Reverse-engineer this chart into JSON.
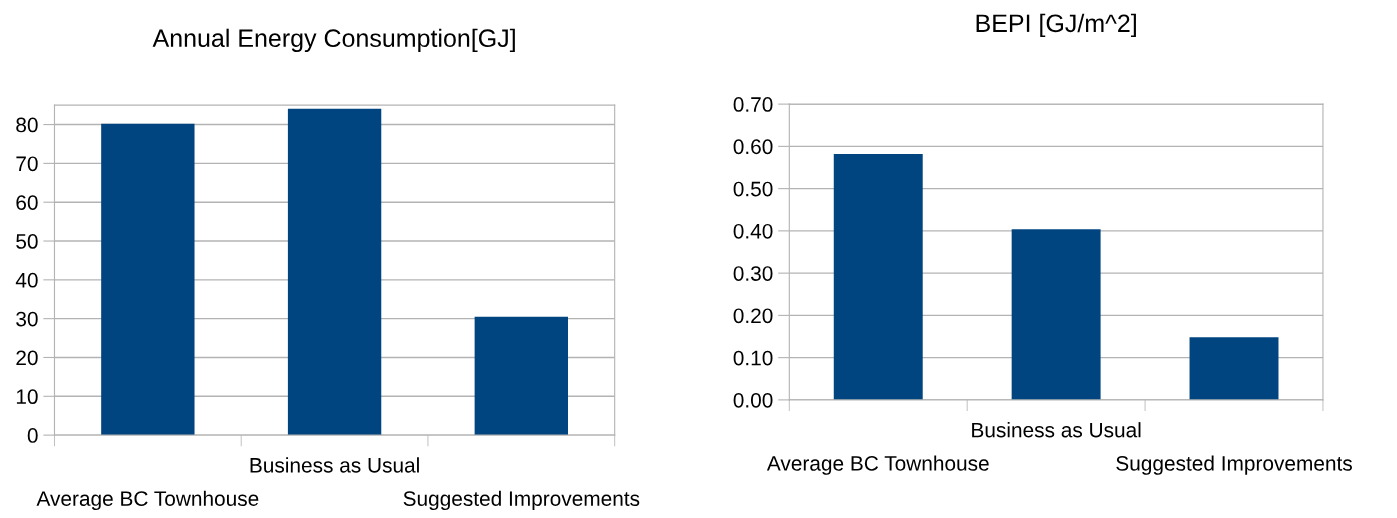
{
  "chart_data": [
    {
      "type": "bar",
      "title": "Annual Energy Consumption[GJ]",
      "categories": [
        "Average BC Townhouse",
        "Business as Usual",
        "Suggested Improvements"
      ],
      "values": [
        80.2,
        84.1,
        30.5
      ],
      "color": "#00457f",
      "ylim": [
        0,
        85
      ],
      "yticks": [
        0,
        10,
        20,
        30,
        40,
        50,
        60,
        70,
        80
      ],
      "grid": "y",
      "legend": false
    },
    {
      "type": "bar",
      "title": "BEPI [GJ/m^2]",
      "categories": [
        "Average BC Townhouse",
        "Business as Usual",
        "Suggested Improvements"
      ],
      "values": [
        0.582,
        0.404,
        0.148
      ],
      "color": "#00457f",
      "ylim": [
        0,
        0.7
      ],
      "yticks": [
        {
          "value": 0,
          "label": "0.00"
        },
        {
          "value": 0.1,
          "label": "0.10"
        },
        {
          "value": 0.2,
          "label": "0.20"
        },
        {
          "value": 0.3,
          "label": "0.30"
        },
        {
          "value": 0.4,
          "label": "0.40"
        },
        {
          "value": 0.5,
          "label": "0.50"
        },
        {
          "value": 0.6,
          "label": "0.60"
        },
        {
          "value": 0.7,
          "label": "0.70"
        }
      ],
      "grid": "y",
      "legend": false
    }
  ]
}
